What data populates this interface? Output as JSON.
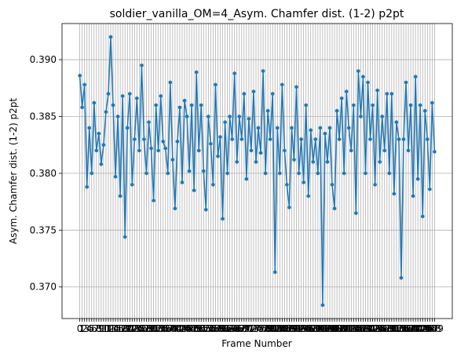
{
  "chart_data": {
    "type": "line",
    "title": "soldier_vanilla_OM=4_Asym. Chamfer dist. (1-2) p2pt",
    "xlabel": "Frame Number",
    "ylabel": "Asym. Chamfer dist. (1-2) p2pt",
    "color": "#1f77b4",
    "grid": true,
    "x": [
      0,
      1,
      2,
      3,
      4,
      5,
      6,
      7,
      8,
      9,
      10,
      11,
      12,
      13,
      14,
      15,
      16,
      17,
      18,
      19,
      20,
      21,
      22,
      23,
      24,
      25,
      26,
      27,
      28,
      29,
      30,
      31,
      32,
      33,
      34,
      35,
      36,
      37,
      38,
      39,
      40,
      41,
      42,
      43,
      44,
      45,
      46,
      47,
      48,
      49,
      50,
      51,
      52,
      53,
      54,
      55,
      56,
      57,
      58,
      59,
      60,
      61,
      62,
      63,
      64,
      65,
      66,
      67,
      68,
      69,
      70,
      71,
      72,
      73,
      74,
      75,
      76,
      77,
      78,
      79,
      80,
      81,
      82,
      83,
      84,
      85,
      86,
      87,
      88,
      89,
      90,
      91,
      92,
      93,
      94,
      95,
      96,
      97,
      98,
      99,
      100,
      101,
      102,
      103,
      104,
      105,
      106,
      107,
      108,
      109,
      110,
      111,
      112,
      113,
      114,
      115,
      116,
      117,
      118,
      119,
      120,
      121,
      122,
      123,
      124,
      125,
      126,
      127,
      128,
      129,
      130,
      131,
      132,
      133,
      134,
      135,
      136,
      137,
      138,
      139,
      140,
      141,
      142,
      143,
      144,
      145,
      146,
      147,
      148,
      149
    ],
    "values": [
      0.3886,
      0.3858,
      0.3878,
      0.3788,
      0.384,
      0.38,
      0.3862,
      0.382,
      0.3835,
      0.3808,
      0.3825,
      0.3854,
      0.387,
      0.392,
      0.386,
      0.3797,
      0.385,
      0.378,
      0.3868,
      0.3744,
      0.384,
      0.387,
      0.379,
      0.383,
      0.3866,
      0.382,
      0.3895,
      0.383,
      0.38,
      0.3845,
      0.3822,
      0.3776,
      0.386,
      0.382,
      0.3868,
      0.3828,
      0.3822,
      0.38,
      0.388,
      0.3812,
      0.3769,
      0.3828,
      0.3858,
      0.3792,
      0.3864,
      0.385,
      0.3802,
      0.386,
      0.3785,
      0.3889,
      0.382,
      0.386,
      0.3802,
      0.3768,
      0.385,
      0.3826,
      0.379,
      0.3878,
      0.3815,
      0.3832,
      0.376,
      0.3845,
      0.38,
      0.385,
      0.383,
      0.3888,
      0.381,
      0.385,
      0.383,
      0.387,
      0.3795,
      0.3848,
      0.382,
      0.3872,
      0.381,
      0.384,
      0.3818,
      0.389,
      0.38,
      0.3855,
      0.383,
      0.387,
      0.3713,
      0.384,
      0.38,
      0.3878,
      0.382,
      0.379,
      0.377,
      0.384,
      0.3812,
      0.3876,
      0.38,
      0.383,
      0.3792,
      0.386,
      0.378,
      0.3838,
      0.381,
      0.383,
      0.38,
      0.384,
      0.3684,
      0.3835,
      0.381,
      0.384,
      0.379,
      0.3769,
      0.3855,
      0.383,
      0.3866,
      0.38,
      0.3872,
      0.384,
      0.382,
      0.386,
      0.3765,
      0.389,
      0.385,
      0.3885,
      0.38,
      0.388,
      0.383,
      0.386,
      0.379,
      0.3873,
      0.381,
      0.385,
      0.382,
      0.387,
      0.38,
      0.387,
      0.3782,
      0.3845,
      0.383,
      0.3708,
      0.383,
      0.388,
      0.382,
      0.386,
      0.378,
      0.3885,
      0.3795,
      0.386,
      0.3762,
      0.3855,
      0.383,
      0.3786,
      0.3862,
      0.3819
    ],
    "xlim": [
      -7.45,
      156.45
    ],
    "xticks": [
      0,
      1,
      2,
      3,
      4,
      5,
      6,
      7,
      8,
      9,
      10,
      11,
      12,
      13,
      14,
      15,
      16,
      17,
      18,
      19,
      20,
      21,
      22,
      23,
      24,
      25,
      26,
      27,
      28,
      29,
      30,
      31,
      32,
      33,
      34,
      35,
      36,
      37,
      38,
      39,
      40,
      41,
      42,
      43,
      44,
      45,
      46,
      47,
      48,
      49,
      50,
      51,
      52,
      53,
      54,
      55,
      56,
      57,
      58,
      59,
      60,
      61,
      62,
      63,
      64,
      65,
      66,
      67,
      68,
      69,
      70,
      71,
      72,
      73,
      74,
      75,
      76,
      77,
      78,
      79,
      80,
      81,
      82,
      83,
      84,
      85,
      86,
      87,
      88,
      89,
      90,
      91,
      92,
      93,
      94,
      95,
      96,
      97,
      98,
      99,
      100,
      101,
      102,
      103,
      104,
      105,
      106,
      107,
      108,
      109,
      110,
      111,
      112,
      113,
      114,
      115,
      116,
      117,
      118,
      119,
      120,
      121,
      122,
      123,
      124,
      125,
      126,
      127,
      128,
      129,
      130,
      131,
      132,
      133,
      134,
      135,
      136,
      137,
      138,
      139,
      140,
      141,
      142,
      143,
      144,
      145,
      146,
      147,
      148,
      149
    ],
    "ylim": [
      0.36722,
      0.39318
    ],
    "yticks": [
      {
        "value": 0.37,
        "label": "0.370"
      },
      {
        "value": 0.375,
        "label": "0.375"
      },
      {
        "value": 0.38,
        "label": "0.380"
      },
      {
        "value": 0.385,
        "label": "0.385"
      },
      {
        "value": 0.39,
        "label": "0.390"
      }
    ]
  }
}
